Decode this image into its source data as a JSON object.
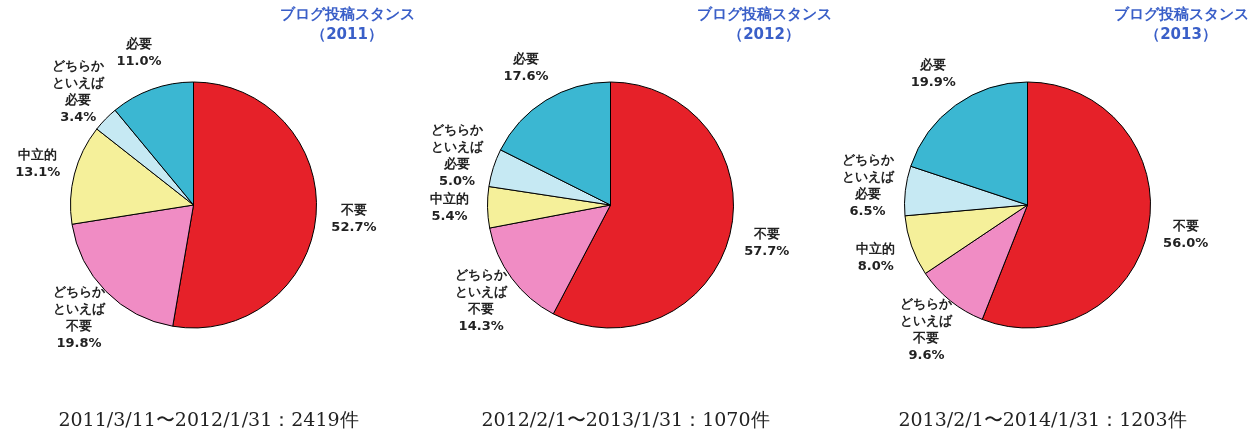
{
  "chart_data": [
    {
      "type": "pie",
      "title": "ブログ投稿スタンス",
      "subtitle": "（2011）",
      "categories": [
        "不要",
        "どちらかといえば不要",
        "中立的",
        "どちらかといえば必要",
        "必要"
      ],
      "values": [
        52.7,
        19.8,
        13.1,
        3.4,
        11.0
      ],
      "value_labels": [
        "52.7%",
        "19.8%",
        "13.1%",
        "3.4%",
        "11.0%"
      ],
      "colors": [
        "#e62129",
        "#f08cc4",
        "#f5f09a",
        "#c6e9f3",
        "#3bb7d2"
      ],
      "annotations": [
        "2011/3/11〜2012/1/31：2419件"
      ]
    },
    {
      "type": "pie",
      "title": "ブログ投稿スタンス",
      "subtitle": "（2012）",
      "categories": [
        "不要",
        "どちらかといえば不要",
        "中立的",
        "どちらかといえば必要",
        "必要"
      ],
      "values": [
        57.7,
        14.3,
        5.4,
        5.0,
        17.6
      ],
      "value_labels": [
        "57.7%",
        "14.3%",
        "5.4%",
        "5.0%",
        "17.6%"
      ],
      "colors": [
        "#e62129",
        "#f08cc4",
        "#f5f09a",
        "#c6e9f3",
        "#3bb7d2"
      ],
      "annotations": [
        "2012/2/1〜2013/1/31：1070件"
      ]
    },
    {
      "type": "pie",
      "title": "ブログ投稿スタンス",
      "subtitle": "（2013）",
      "categories": [
        "不要",
        "どちらかといえば不要",
        "中立的",
        "どちらかといえば必要",
        "必要"
      ],
      "values": [
        56.0,
        9.6,
        8.0,
        6.5,
        19.9
      ],
      "value_labels": [
        "56.0%",
        "9.6%",
        "8.0%",
        "6.5%",
        "19.9%"
      ],
      "colors": [
        "#e62129",
        "#f08cc4",
        "#f5f09a",
        "#c6e9f3",
        "#3bb7d2"
      ],
      "annotations": [
        "2013/2/1〜2014/1/31：1203件"
      ]
    }
  ]
}
